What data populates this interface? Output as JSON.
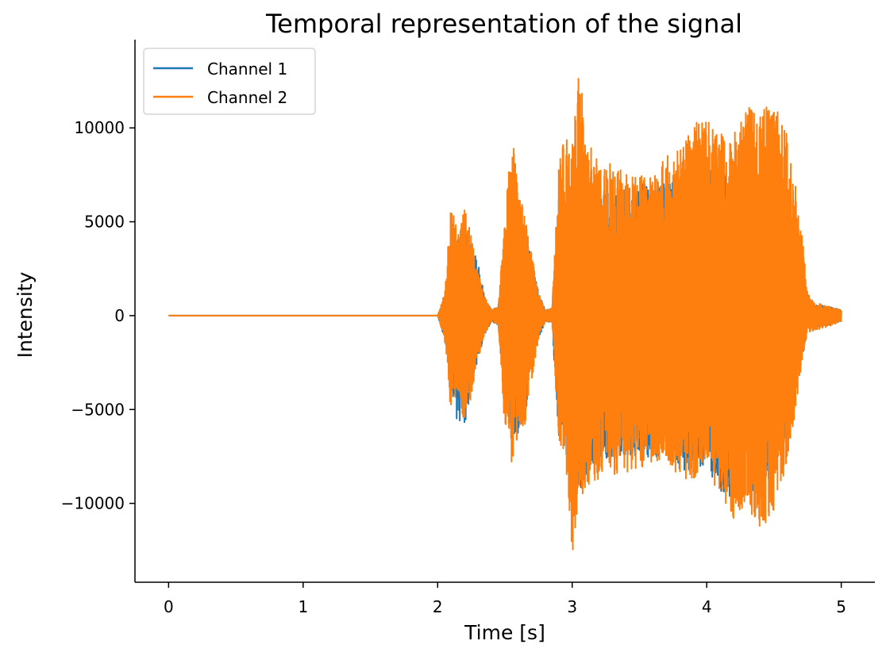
{
  "chart_data": {
    "type": "line",
    "title": "Temporal representation of the signal",
    "xlabel": "Time [s]",
    "ylabel": "Intensity",
    "xlim": [
      -0.25,
      5.25
    ],
    "ylim": [
      -14200,
      14700
    ],
    "x_ticks": [
      0,
      1,
      2,
      3,
      4,
      5
    ],
    "x_tick_labels": [
      "0",
      "1",
      "2",
      "3",
      "4",
      "5"
    ],
    "y_ticks": [
      10000,
      5000,
      0,
      -5000,
      -10000
    ],
    "y_tick_labels": [
      "10000",
      "5000",
      "0",
      "−5000",
      "−10000"
    ],
    "grid": false,
    "legend_position": "top-left",
    "series": [
      {
        "name": "Channel 1",
        "color": "#1f77b4",
        "envelope": {
          "t": [
            0.0,
            2.0,
            2.05,
            2.1,
            2.15,
            2.2,
            2.25,
            2.3,
            2.35,
            2.4,
            2.45,
            2.5,
            2.55,
            2.6,
            2.65,
            2.7,
            2.75,
            2.8,
            2.85,
            2.9,
            2.95,
            3.0,
            3.05,
            3.1,
            3.2,
            3.3,
            3.4,
            3.5,
            3.6,
            3.7,
            3.8,
            3.9,
            4.0,
            4.1,
            4.2,
            4.3,
            4.4,
            4.5,
            4.6,
            4.7,
            4.75,
            4.8,
            4.9,
            5.0
          ],
          "max": [
            0,
            0,
            1000,
            3800,
            4300,
            4600,
            3800,
            2800,
            1000,
            300,
            500,
            3500,
            5200,
            5500,
            4800,
            3200,
            1300,
            300,
            400,
            6300,
            6400,
            7300,
            7600,
            6900,
            6700,
            6700,
            7100,
            7100,
            6900,
            7100,
            7600,
            7200,
            7700,
            7900,
            7400,
            7300,
            6700,
            6500,
            5500,
            2500,
            700,
            600,
            500,
            300
          ],
          "min": [
            0,
            0,
            -1200,
            -4500,
            -5800,
            -5900,
            -4200,
            -2200,
            -1100,
            -300,
            -500,
            -4800,
            -6300,
            -6300,
            -5400,
            -2900,
            -1300,
            -300,
            -400,
            -6500,
            -7400,
            -9800,
            -9600,
            -8700,
            -7800,
            -7500,
            -7400,
            -7600,
            -7700,
            -7400,
            -8300,
            -8200,
            -8000,
            -9600,
            -9700,
            -9100,
            -9600,
            -8300,
            -6300,
            -2600,
            -700,
            -600,
            -500,
            -300
          ]
        }
      },
      {
        "name": "Channel 2",
        "color": "#ff7f0e",
        "envelope": {
          "t": [
            0.0,
            2.0,
            2.05,
            2.1,
            2.15,
            2.2,
            2.25,
            2.3,
            2.35,
            2.4,
            2.45,
            2.5,
            2.55,
            2.6,
            2.65,
            2.7,
            2.75,
            2.8,
            2.85,
            2.9,
            2.95,
            3.0,
            3.05,
            3.1,
            3.2,
            3.3,
            3.4,
            3.5,
            3.6,
            3.7,
            3.8,
            3.9,
            4.0,
            4.1,
            4.2,
            4.3,
            4.4,
            4.5,
            4.6,
            4.7,
            4.75,
            4.8,
            4.9,
            5.0
          ],
          "max": [
            0,
            0,
            1200,
            5900,
            4400,
            5800,
            4200,
            2300,
            1000,
            300,
            500,
            5200,
            10000,
            6500,
            5800,
            3500,
            1200,
            300,
            400,
            7900,
            10100,
            9200,
            13200,
            10300,
            7900,
            8200,
            7500,
            7500,
            7400,
            8800,
            9000,
            10300,
            10400,
            9700,
            9800,
            11100,
            10900,
            11400,
            9700,
            5000,
            1200,
            700,
            500,
            300
          ],
          "min": [
            0,
            0,
            -1200,
            -5300,
            -4200,
            -5900,
            -4300,
            -2300,
            -1100,
            -300,
            -500,
            -6200,
            -7900,
            -6400,
            -5900,
            -3500,
            -1200,
            -300,
            -400,
            -6600,
            -7600,
            -12900,
            -9800,
            -10000,
            -8800,
            -8500,
            -8400,
            -8200,
            -7800,
            -7700,
            -8700,
            -8700,
            -8100,
            -9800,
            -10800,
            -10200,
            -11300,
            -10700,
            -8000,
            -3000,
            -900,
            -800,
            -600,
            -300
          ]
        }
      }
    ]
  }
}
